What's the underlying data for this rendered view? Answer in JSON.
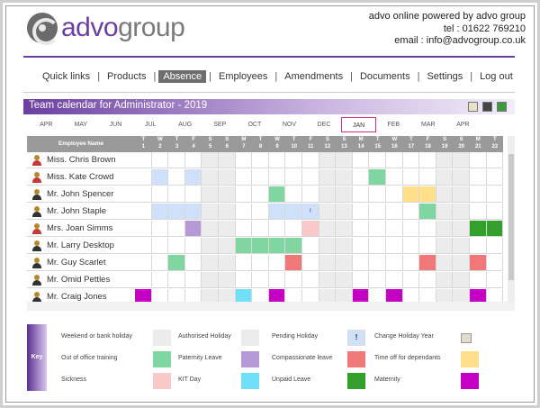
{
  "header": {
    "logo_left": "advo",
    "logo_right": "group",
    "contact_line1": "advo online powered by advo group",
    "contact_line2": "tel : 01622 769210",
    "contact_line3": "email : info@advogroup.co.uk"
  },
  "nav": {
    "items": [
      "Quick links",
      "Products",
      "Absence",
      "Employees",
      "Amendments",
      "Documents",
      "Settings",
      "Log out"
    ],
    "active": "Absence"
  },
  "calendar": {
    "title": "Team calendar for  Administrator  - 2019",
    "months": [
      "APR",
      "MAY",
      "JUN",
      "JUL",
      "AUG",
      "SEP",
      "OCT",
      "NOV",
      "DEC",
      "JAN",
      "FEB",
      "MAR",
      "APR"
    ],
    "selected_month": "JAN",
    "name_header": "Employee Name",
    "day_letters": [
      "T",
      "W",
      "T",
      "F",
      "S",
      "S",
      "M",
      "T",
      "W",
      "T",
      "F",
      "S",
      "S",
      "M",
      "T",
      "W",
      "T",
      "F",
      "S",
      "S",
      "M",
      "T"
    ],
    "day_numbers": [
      "1",
      "2",
      "3",
      "4",
      "5",
      "6",
      "7",
      "8",
      "9",
      "10",
      "11",
      "12",
      "13",
      "14",
      "15",
      "16",
      "17",
      "18",
      "19",
      "20",
      "21",
      "22"
    ],
    "employees": [
      "Miss. Chris Brown",
      "Miss. Kate Crowd",
      "Mr. John Spencer",
      "Mr. John Staple",
      "Mrs. Joan Simms",
      "Mr. Larry Desktop",
      "Mr. Guy Scarlet",
      "Mr. Omid Pettles",
      "Mr. Craig Jones"
    ],
    "cell_marker": "!"
  },
  "key": {
    "tab_label": "Key",
    "items": [
      {
        "label": "Weekend or bank holiday",
        "color": "#ececec"
      },
      {
        "label": "Authorised Holiday",
        "color": "#ffffff"
      },
      {
        "label": "Pending Holiday",
        "color": "#cfe0fa"
      },
      {
        "label": "Change Holiday Year",
        "color": "#ffffff"
      },
      {
        "label": "Out of office training",
        "color": "#7fd6a0"
      },
      {
        "label": "Paternity Leave",
        "color": "#b59ad6"
      },
      {
        "label": "Compassionate leave",
        "color": "#f07878"
      },
      {
        "label": "Time off for dependants",
        "color": "#ffe08a"
      },
      {
        "label": "Sickness",
        "color": "#f9c8c8"
      },
      {
        "label": "KIT Day",
        "color": "#6fe0f7"
      },
      {
        "label": "Unpaid Leave",
        "color": "#33a02c"
      },
      {
        "label": "Maternity",
        "color": "#c400c4"
      }
    ],
    "change_icon_glyph": "!"
  },
  "colors": {
    "brand_purple": "#6b3fa0",
    "weekend": "#ececec",
    "pending": "#cfe0fa",
    "training": "#7fd6a0",
    "paternity": "#b59ad6",
    "compassionate": "#f07878",
    "dependants": "#ffe08a",
    "sickness": "#f9c8c8",
    "kit": "#6fe0f7",
    "unpaid": "#33a02c",
    "maternity": "#c400c4"
  }
}
